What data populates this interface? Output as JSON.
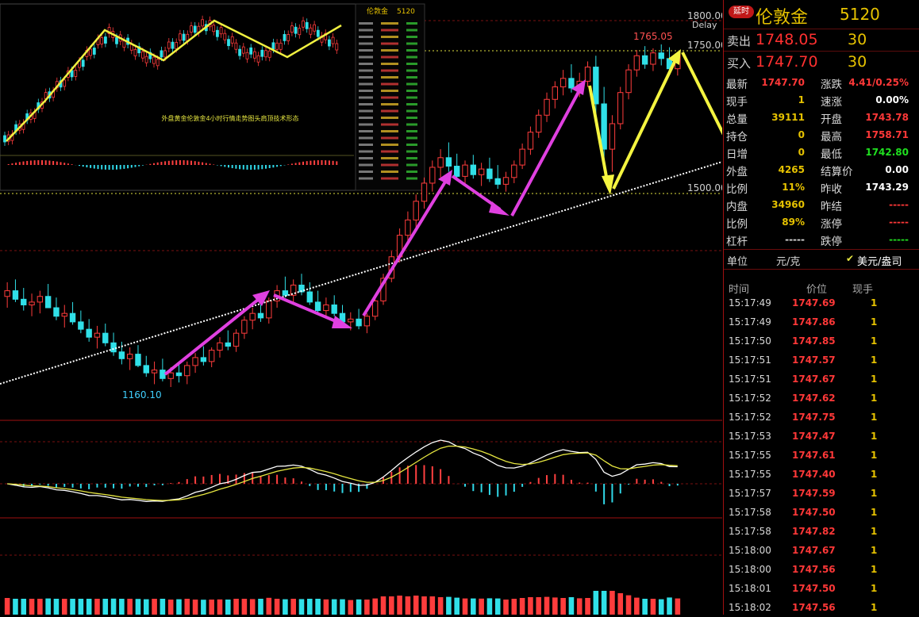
{
  "chart_data": {
    "type": "candlestick",
    "symbol": "伦敦金",
    "price_labels": [
      "1800.00",
      "1750.00",
      "1500.00"
    ],
    "annotations": {
      "high": "1765.05",
      "low": "1160.10",
      "delay": "Delay"
    },
    "inset": {
      "symbol": "伦敦金",
      "code": "5120",
      "caption": "外盘黄金伦敦金4小时行情走势图头肩顶技术形态"
    },
    "candles": [
      [
        1320,
        1345,
        1300,
        1330
      ],
      [
        1330,
        1350,
        1310,
        1315
      ],
      [
        1315,
        1335,
        1295,
        1305
      ],
      [
        1305,
        1325,
        1285,
        1310
      ],
      [
        1310,
        1330,
        1290,
        1320
      ],
      [
        1320,
        1342,
        1300,
        1300
      ],
      [
        1300,
        1318,
        1278,
        1285
      ],
      [
        1285,
        1305,
        1265,
        1290
      ],
      [
        1290,
        1310,
        1270,
        1275
      ],
      [
        1275,
        1295,
        1255,
        1262
      ],
      [
        1262,
        1280,
        1240,
        1248
      ],
      [
        1248,
        1268,
        1228,
        1255
      ],
      [
        1255,
        1272,
        1232,
        1238
      ],
      [
        1238,
        1256,
        1215,
        1222
      ],
      [
        1222,
        1240,
        1200,
        1210
      ],
      [
        1210,
        1230,
        1190,
        1218
      ],
      [
        1218,
        1234,
        1195,
        1198
      ],
      [
        1198,
        1215,
        1178,
        1185
      ],
      [
        1185,
        1205,
        1165,
        1190
      ],
      [
        1190,
        1210,
        1170,
        1175
      ],
      [
        1175,
        1195,
        1160,
        1185
      ],
      [
        1185,
        1205,
        1168,
        1180
      ],
      [
        1180,
        1205,
        1165,
        1198
      ],
      [
        1198,
        1220,
        1185,
        1212
      ],
      [
        1212,
        1232,
        1198,
        1205
      ],
      [
        1205,
        1230,
        1195,
        1225
      ],
      [
        1225,
        1248,
        1212,
        1238
      ],
      [
        1238,
        1260,
        1225,
        1232
      ],
      [
        1232,
        1262,
        1222,
        1255
      ],
      [
        1255,
        1285,
        1245,
        1278
      ],
      [
        1278,
        1300,
        1262,
        1290
      ],
      [
        1290,
        1315,
        1275,
        1282
      ],
      [
        1282,
        1318,
        1272,
        1312
      ],
      [
        1312,
        1340,
        1300,
        1330
      ],
      [
        1330,
        1355,
        1318,
        1322
      ],
      [
        1322,
        1350,
        1310,
        1340
      ],
      [
        1340,
        1360,
        1322,
        1328
      ],
      [
        1328,
        1345,
        1305,
        1310
      ],
      [
        1310,
        1330,
        1290,
        1295
      ],
      [
        1295,
        1318,
        1282,
        1305
      ],
      [
        1305,
        1322,
        1285,
        1290
      ],
      [
        1290,
        1305,
        1268,
        1275
      ],
      [
        1275,
        1292,
        1260,
        1280
      ],
      [
        1280,
        1298,
        1262,
        1268
      ],
      [
        1268,
        1290,
        1255,
        1285
      ],
      [
        1285,
        1320,
        1278,
        1312
      ],
      [
        1312,
        1360,
        1305,
        1352
      ],
      [
        1352,
        1400,
        1345,
        1390
      ],
      [
        1390,
        1440,
        1380,
        1428
      ],
      [
        1428,
        1470,
        1415,
        1455
      ],
      [
        1455,
        1500,
        1440,
        1488
      ],
      [
        1488,
        1530,
        1475,
        1520
      ],
      [
        1520,
        1560,
        1505,
        1548
      ],
      [
        1548,
        1580,
        1530,
        1565
      ],
      [
        1565,
        1592,
        1540,
        1550
      ],
      [
        1550,
        1572,
        1525,
        1532
      ],
      [
        1532,
        1560,
        1518,
        1552
      ],
      [
        1552,
        1570,
        1528,
        1535
      ],
      [
        1535,
        1556,
        1515,
        1545
      ],
      [
        1545,
        1565,
        1522,
        1528
      ],
      [
        1528,
        1552,
        1510,
        1518
      ],
      [
        1518,
        1540,
        1505,
        1530
      ],
      [
        1530,
        1560,
        1520,
        1552
      ],
      [
        1552,
        1590,
        1545,
        1580
      ],
      [
        1580,
        1620,
        1570,
        1610
      ],
      [
        1610,
        1650,
        1600,
        1640
      ],
      [
        1640,
        1680,
        1628,
        1668
      ],
      [
        1668,
        1700,
        1652,
        1690
      ],
      [
        1690,
        1720,
        1675,
        1705
      ],
      [
        1705,
        1730,
        1680,
        1688
      ],
      [
        1688,
        1715,
        1672,
        1700
      ],
      [
        1700,
        1735,
        1690,
        1725
      ],
      [
        1725,
        1745,
        1640,
        1660
      ],
      [
        1660,
        1690,
        1560,
        1580
      ],
      [
        1580,
        1640,
        1540,
        1625
      ],
      [
        1625,
        1690,
        1615,
        1680
      ],
      [
        1680,
        1730,
        1668,
        1720
      ],
      [
        1720,
        1755,
        1708,
        1745
      ],
      [
        1745,
        1762,
        1722,
        1730
      ],
      [
        1730,
        1758,
        1718,
        1750
      ],
      [
        1750,
        1765,
        1728,
        1740
      ],
      [
        1740,
        1760,
        1712,
        1722
      ],
      [
        1722,
        1752,
        1710,
        1748
      ]
    ]
  },
  "panel": {
    "badge": "延时",
    "name": "伦敦金",
    "code": "5120",
    "sell": {
      "label": "卖出",
      "price": "1748.05",
      "vol": "30"
    },
    "buy": {
      "label": "买入",
      "price": "1747.70",
      "vol": "30"
    },
    "rows": [
      {
        "l1": "最新",
        "v1": "1747.70",
        "c1": "#ff3838",
        "l2": "涨跌",
        "v2": "4.41/0.25%",
        "c2": "#ff3838"
      },
      {
        "l1": "现手",
        "v1": "1",
        "c1": "#e6c200",
        "l2": "速涨",
        "v2": "0.00%",
        "c2": "#ffffff"
      },
      {
        "l1": "总量",
        "v1": "39111",
        "c1": "#e6c200",
        "l2": "开盘",
        "v2": "1743.78",
        "c2": "#ff3838"
      },
      {
        "l1": "持仓",
        "v1": "0",
        "c1": "#e6c200",
        "l2": "最高",
        "v2": "1758.71",
        "c2": "#ff3838"
      },
      {
        "l1": "日增",
        "v1": "0",
        "c1": "#e6c200",
        "l2": "最低",
        "v2": "1742.80",
        "c2": "#20e020"
      },
      {
        "l1": "外盘",
        "v1": "4265",
        "c1": "#e6c200",
        "l2": "结算价",
        "v2": "0.00",
        "c2": "#ffffff"
      },
      {
        "l1": "比例",
        "v1": "11%",
        "c1": "#e6c200",
        "l2": "昨收",
        "v2": "1743.29",
        "c2": "#ffffff"
      },
      {
        "l1": "内盘",
        "v1": "34960",
        "c1": "#e6c200",
        "l2": "昨结",
        "v2": "-----",
        "c2": "#ff3838"
      },
      {
        "l1": "比例",
        "v1": "89%",
        "c1": "#e6c200",
        "l2": "涨停",
        "v2": "-----",
        "c2": "#ff3838"
      },
      {
        "l1": "杠杆",
        "v1": "-----",
        "c1": "#d8d8d8",
        "l2": "跌停",
        "v2": "-----",
        "c2": "#20e020"
      }
    ],
    "unit": {
      "label": "单位",
      "cny": "元/克",
      "usd": "美元/盎司"
    },
    "ticks_header": {
      "time": "时间",
      "price": "价位",
      "vol": "现手"
    },
    "ticks": [
      {
        "t": "15:17:49",
        "p": "1747.69",
        "v": "1"
      },
      {
        "t": "15:17:49",
        "p": "1747.86",
        "v": "1"
      },
      {
        "t": "15:17:50",
        "p": "1747.85",
        "v": "1"
      },
      {
        "t": "15:17:51",
        "p": "1747.57",
        "v": "1"
      },
      {
        "t": "15:17:51",
        "p": "1747.67",
        "v": "1"
      },
      {
        "t": "15:17:52",
        "p": "1747.62",
        "v": "1"
      },
      {
        "t": "15:17:52",
        "p": "1747.75",
        "v": "1"
      },
      {
        "t": "15:17:53",
        "p": "1747.47",
        "v": "1"
      },
      {
        "t": "15:17:55",
        "p": "1747.61",
        "v": "1"
      },
      {
        "t": "15:17:55",
        "p": "1747.40",
        "v": "1"
      },
      {
        "t": "15:17:57",
        "p": "1747.59",
        "v": "1"
      },
      {
        "t": "15:17:58",
        "p": "1747.50",
        "v": "1"
      },
      {
        "t": "15:17:58",
        "p": "1747.82",
        "v": "1"
      },
      {
        "t": "15:18:00",
        "p": "1747.67",
        "v": "1"
      },
      {
        "t": "15:18:00",
        "p": "1747.56",
        "v": "1"
      },
      {
        "t": "15:18:01",
        "p": "1747.50",
        "v": "1"
      },
      {
        "t": "15:18:02",
        "p": "1747.56",
        "v": "1"
      }
    ]
  }
}
